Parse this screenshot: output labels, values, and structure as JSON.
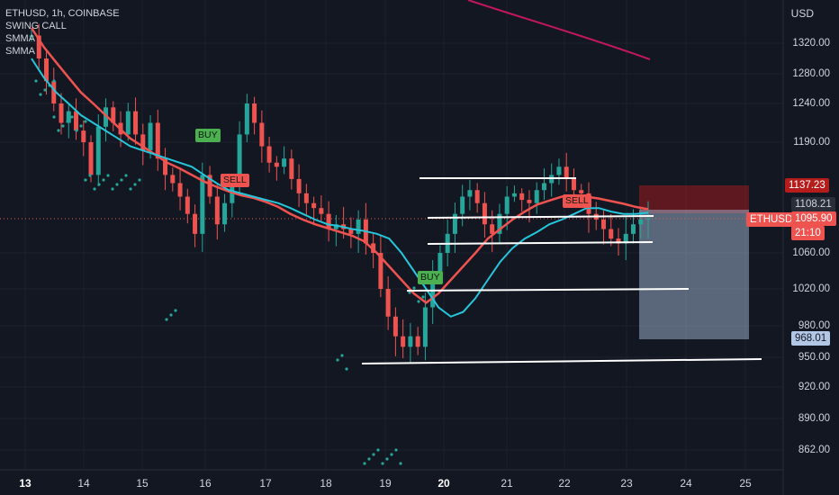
{
  "legend": {
    "symbol_line": "ETHUSD, 1h, COINBASE",
    "indicators": [
      "SWING CALL",
      "SMMA",
      "SMMA"
    ]
  },
  "price_axis": {
    "currency": "USD",
    "ticks": [
      "1320.00",
      "1280.00",
      "1240.00",
      "1190.00",
      "1060.00",
      "1020.00",
      "980.00",
      "950.00",
      "920.00",
      "890.00",
      "862.00"
    ],
    "tick_values": [
      1320,
      1280,
      1240,
      1190,
      1060,
      1020,
      980,
      950,
      920,
      890,
      862
    ]
  },
  "time_axis": {
    "ticks": [
      "13",
      "14",
      "15",
      "16",
      "17",
      "18",
      "19",
      "20",
      "21",
      "22",
      "23",
      "24",
      "25"
    ],
    "bold": [
      "13",
      "20"
    ]
  },
  "badges": {
    "stop_price": "1137.23",
    "entry_price": "1108.21",
    "symbol": "ETHUSD",
    "last_price": "1095.90",
    "countdown": "21:10",
    "target_price": "968.01"
  },
  "signals": [
    {
      "label": "BUY",
      "type": "buy"
    },
    {
      "label": "SELL",
      "type": "sell"
    },
    {
      "label": "BUY",
      "type": "buy"
    },
    {
      "label": "SELL",
      "type": "sell"
    }
  ],
  "colors": {
    "background": "#131722",
    "up": "#26a69a",
    "down": "#ef5350",
    "smma_fast": "#26c6da",
    "smma_slow": "#ef5350",
    "smma_long": "#c2185b",
    "buy_label": "#4caf50",
    "sell_label": "#ef5350"
  },
  "chart_data": {
    "type": "candlestick",
    "series_close": [
      1330,
      1300,
      1270,
      1240,
      1215,
      1230,
      1205,
      1190,
      1150,
      1210,
      1235,
      1215,
      1200,
      1230,
      1200,
      1180,
      1215,
      1170,
      1150,
      1140,
      1120,
      1100,
      1080,
      1150,
      1120,
      1090,
      1110,
      1140,
      1200,
      1240,
      1215,
      1185,
      1165,
      1160,
      1170,
      1145,
      1125,
      1110,
      1105,
      1100,
      1085,
      1090,
      1085,
      1080,
      1095,
      1070,
      1060,
      1020,
      990,
      970,
      960,
      970,
      960,
      1000,
      1040,
      1060,
      1080,
      1100,
      1120,
      1130,
      1110,
      1090,
      1080,
      1100,
      1120,
      1125,
      1115,
      1110,
      1130,
      1140,
      1150,
      1160,
      1145,
      1130,
      1125,
      1100,
      1095,
      1085,
      1075,
      1070,
      1080,
      1090,
      1095,
      1096
    ],
    "smma_fast": [
      1300,
      1275,
      1255,
      1240,
      1225,
      1215,
      1205,
      1195,
      1185,
      1180,
      1175,
      1170,
      1165,
      1160,
      1150,
      1140,
      1130,
      1125,
      1120,
      1115,
      1110,
      1105,
      1100,
      1095,
      1090,
      1088,
      1085,
      1083,
      1080,
      1075,
      1060,
      1040,
      1020,
      1000,
      990,
      995,
      1010,
      1030,
      1050,
      1065,
      1075,
      1082,
      1090,
      1095,
      1100,
      1105,
      1105,
      1102,
      1100,
      1100,
      1101
    ],
    "smma_slow": [
      1340,
      1315,
      1295,
      1275,
      1255,
      1240,
      1225,
      1210,
      1195,
      1185,
      1175,
      1165,
      1158,
      1150,
      1142,
      1135,
      1128,
      1122,
      1118,
      1112,
      1106,
      1100,
      1095,
      1090,
      1086,
      1082,
      1078,
      1072,
      1060,
      1045,
      1030,
      1015,
      1005,
      1015,
      1030,
      1045,
      1060,
      1075,
      1085,
      1095,
      1102,
      1108,
      1114,
      1120,
      1122,
      1120,
      1117,
      1113,
      1109,
      1106,
      1104
    ]
  }
}
